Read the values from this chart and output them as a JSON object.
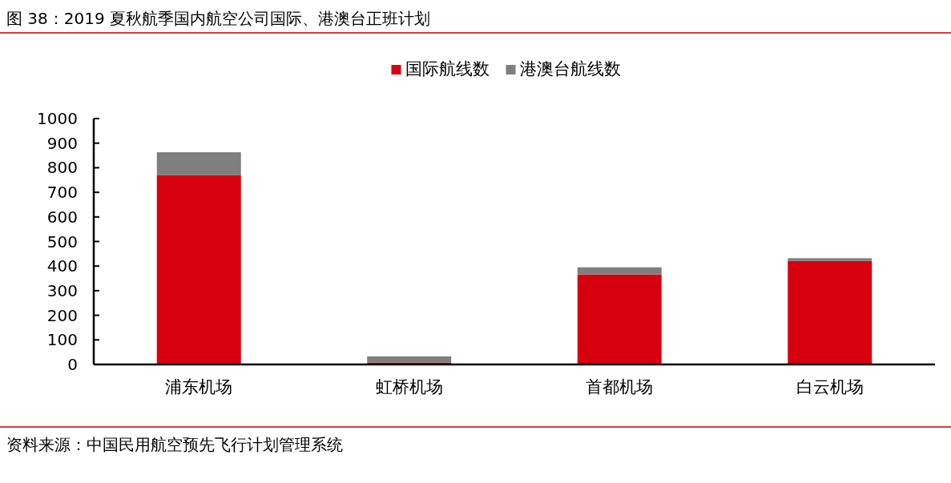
{
  "chart_data": {
    "type": "bar",
    "stacked": true,
    "title": "图 38：2019 夏秋航季国内航空公司国际、港澳台正班计划",
    "categories": [
      "浦东机场",
      "虹桥机场",
      "首都机场",
      "白云机场"
    ],
    "series": [
      {
        "name": "国际航线数",
        "color": "#d7000f",
        "values": [
          769,
          8,
          366,
          421
        ]
      },
      {
        "name": "港澳台航线数",
        "color": "#7f7f7f",
        "values": [
          94,
          25,
          29,
          11
        ]
      }
    ],
    "ylim": [
      0,
      1000
    ],
    "yticks": [
      0,
      100,
      200,
      300,
      400,
      500,
      600,
      700,
      800,
      900,
      1000
    ],
    "legend": "top",
    "annotations": [
      "资料来源：中国民用航空预先飞行计划管理系统"
    ]
  }
}
